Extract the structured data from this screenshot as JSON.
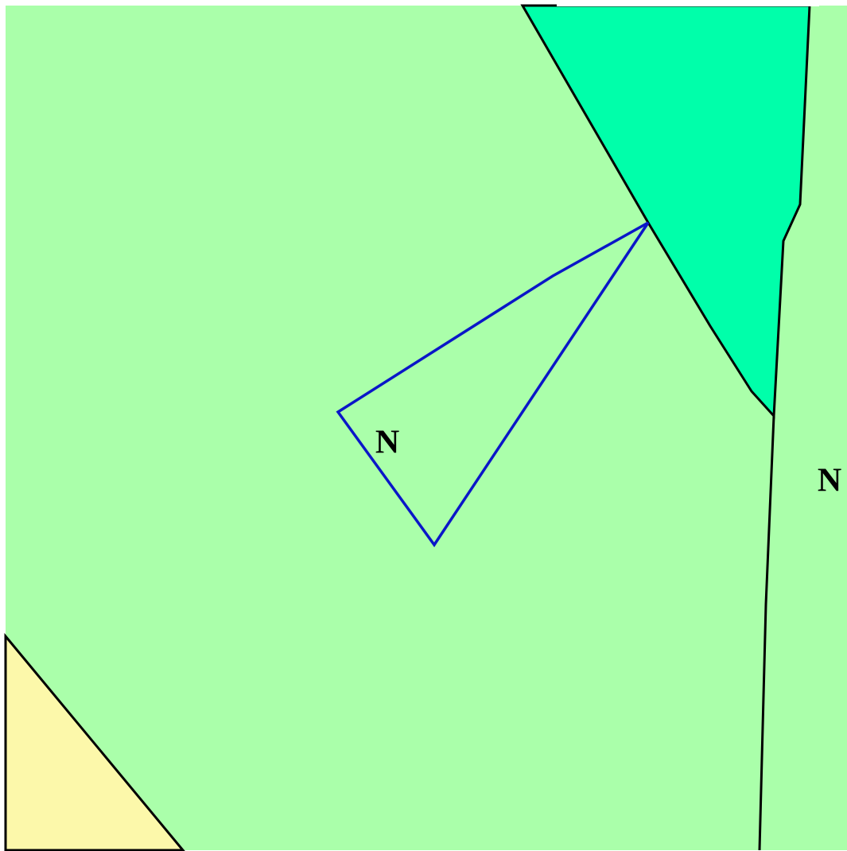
{
  "map": {
    "labels": [
      "N",
      "N"
    ]
  }
}
